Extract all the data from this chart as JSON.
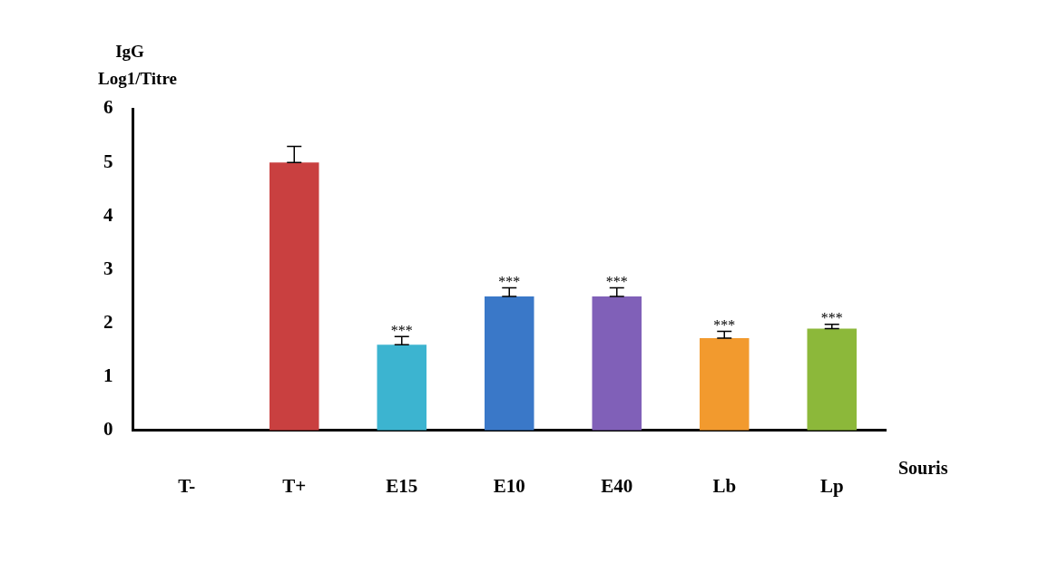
{
  "chart_data": {
    "type": "bar",
    "xlabel": "Souris",
    "ylabel": "IgG Log1/Titre",
    "categories": [
      "T-",
      "T+",
      "E15",
      "E10",
      "E40",
      "Lb",
      "Lp"
    ],
    "values": [
      0,
      5.0,
      1.6,
      2.5,
      2.5,
      1.72,
      1.9
    ],
    "colors": [
      "#c94040",
      "#c94040",
      "#3cb4d0",
      "#3a78c8",
      "#8060b8",
      "#f29a2e",
      "#8cb83a"
    ],
    "errors": [
      null,
      [
        5.0,
        5.3
      ],
      [
        1.6,
        1.75
      ],
      [
        2.5,
        2.66
      ],
      [
        2.5,
        2.66
      ],
      [
        1.72,
        1.85
      ],
      [
        1.9,
        1.98
      ]
    ],
    "ylim": [
      0,
      6
    ],
    "yticks": [
      0,
      1,
      2,
      3,
      4,
      5,
      6
    ],
    "grid": false,
    "legend": false,
    "annotations": [
      {
        "text": "***",
        "x": "E15",
        "y": 1.75
      },
      {
        "text": "***",
        "x": "E10",
        "y": 2.66
      },
      {
        "text": "***",
        "x": "E40",
        "y": 2.66
      },
      {
        "text": "***",
        "x": "Lb",
        "y": 1.85
      },
      {
        "text": "***",
        "x": "Lp",
        "y": 1.98
      }
    ]
  }
}
